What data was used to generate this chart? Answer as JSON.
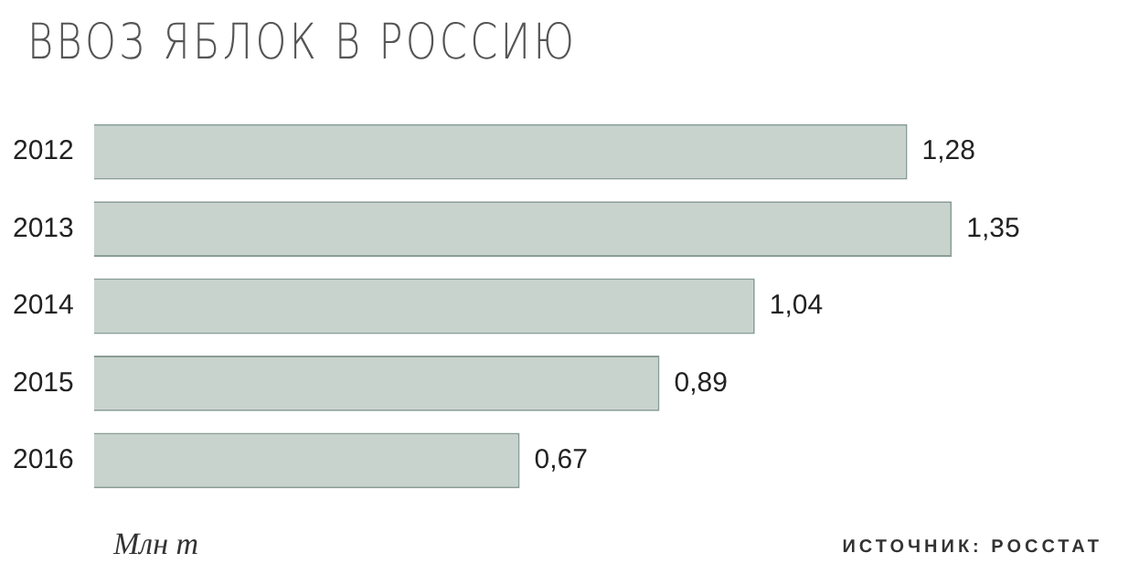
{
  "chart_data": {
    "type": "bar",
    "orientation": "horizontal",
    "title": "ВВОЗ ЯБЛОК В РОССИЮ",
    "categories": [
      "2012",
      "2013",
      "2014",
      "2015",
      "2016"
    ],
    "values": [
      1.28,
      1.35,
      1.04,
      0.89,
      0.67
    ],
    "value_labels": [
      "1,28",
      "1,35",
      "1,04",
      "0,89",
      "0,67"
    ],
    "color": "#c8d3ce",
    "annotations": [
      "Млн т",
      "ИСТОЧНИК: РОССТАТ"
    ]
  }
}
